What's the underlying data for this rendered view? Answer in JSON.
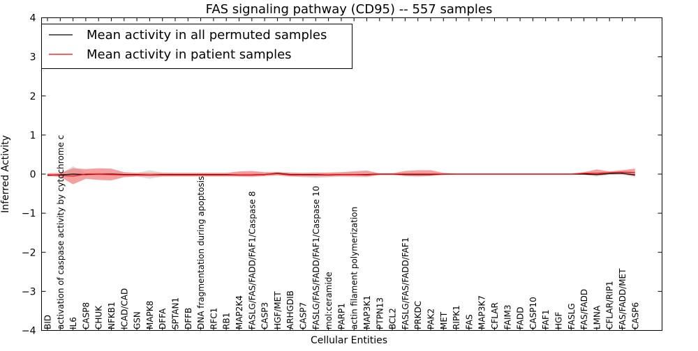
{
  "chart_data": {
    "type": "line",
    "title": "FAS signaling pathway (CD95) -- 557 samples",
    "xlabel": "Cellular Entities",
    "ylabel": "Inferred Activity",
    "ylim": [
      -4,
      4
    ],
    "yticks": [
      -4,
      -3,
      -2,
      -1,
      0,
      1,
      2,
      3,
      4
    ],
    "ytick_labels": [
      "−4",
      "−3",
      "−2",
      "−1",
      "0",
      "1",
      "2",
      "3",
      "4"
    ],
    "grid": false,
    "legend_position": "top-left",
    "categories": [
      "BID",
      "activation of caspase activity by cytochrome c",
      "IL6",
      "CASP8",
      "CHUK",
      "NFKB1",
      "ICAD/CAD",
      "GSN",
      "MAPK8",
      "DFFA",
      "SPTAN1",
      "DFFB",
      "DNA fragmentation during apoptosis",
      "RFC1",
      "RB1",
      "MAP2K4",
      "FASLG/FAS/FADD/FAF1/Caspase 8",
      "CASP3",
      "HGF/MET",
      "ARHGDIB",
      "CASP7",
      "FASLG/FAS/FADD/FAF1/Caspase 10",
      "mol:ceramide",
      "PARP1",
      "actin filament polymerization",
      "MAP3K1",
      "PTPN13",
      "BCL2",
      "FASLG/FAS/FADD/FAF1",
      "PRKDC",
      "PAK2",
      "MET",
      "RIPK1",
      "FAS",
      "MAP3K7",
      "CFLAR",
      "FAIM3",
      "FADD",
      "CASP10",
      "FAF1",
      "HGF",
      "FASLG",
      "FAS/FADD",
      "LMNA",
      "CFLAR/RIP1",
      "FAS/FADD/MET",
      "CASP6"
    ],
    "series": [
      {
        "name": "Mean activity in all permuted samples",
        "color": "#000000",
        "band_color": "#c8c8c8",
        "values": [
          -0.03,
          -0.02,
          0.0,
          -0.01,
          0.0,
          0.0,
          -0.01,
          -0.01,
          -0.02,
          -0.01,
          -0.01,
          -0.01,
          -0.01,
          -0.01,
          -0.01,
          -0.02,
          -0.02,
          -0.01,
          0.02,
          -0.01,
          -0.01,
          -0.01,
          -0.02,
          -0.01,
          -0.01,
          -0.01,
          0.0,
          0.0,
          -0.01,
          -0.01,
          -0.01,
          0.0,
          0.0,
          0.0,
          0.0,
          0.0,
          0.0,
          0.0,
          0.0,
          0.0,
          0.0,
          0.0,
          0.0,
          -0.01,
          0.01,
          0.02,
          -0.02
        ],
        "lower": [
          -0.06,
          -0.04,
          -0.07,
          -0.05,
          -0.04,
          -0.05,
          -0.05,
          -0.06,
          -0.12,
          -0.06,
          -0.05,
          -0.05,
          -0.05,
          -0.05,
          -0.05,
          -0.07,
          -0.08,
          -0.05,
          -0.02,
          -0.06,
          -0.08,
          -0.1,
          -0.08,
          -0.07,
          -0.08,
          -0.08,
          -0.03,
          -0.02,
          -0.03,
          -0.04,
          -0.04,
          -0.02,
          -0.01,
          -0.01,
          -0.01,
          -0.01,
          -0.01,
          -0.01,
          -0.01,
          -0.01,
          -0.01,
          -0.01,
          -0.02,
          -0.06,
          -0.02,
          -0.02,
          -0.06
        ],
        "upper": [
          0.0,
          0.0,
          0.2,
          0.03,
          0.04,
          0.04,
          0.03,
          0.03,
          0.1,
          0.04,
          0.03,
          0.03,
          0.03,
          0.03,
          0.03,
          0.03,
          0.04,
          0.03,
          0.06,
          0.03,
          0.03,
          0.05,
          0.03,
          0.03,
          0.04,
          0.04,
          0.02,
          0.02,
          0.02,
          0.03,
          0.02,
          0.01,
          0.01,
          0.01,
          0.01,
          0.01,
          0.01,
          0.01,
          0.01,
          0.01,
          0.01,
          0.01,
          0.02,
          0.03,
          0.04,
          0.06,
          0.02
        ]
      },
      {
        "name": "Mean activity in patient samples",
        "color": "#ff0000",
        "band_color": "#f08080",
        "values": [
          -0.02,
          -0.03,
          -0.05,
          0.0,
          0.0,
          -0.01,
          -0.02,
          -0.02,
          -0.02,
          -0.02,
          -0.02,
          -0.02,
          -0.02,
          -0.02,
          -0.02,
          -0.02,
          -0.02,
          -0.01,
          0.01,
          -0.02,
          -0.02,
          -0.02,
          -0.02,
          -0.01,
          -0.01,
          -0.02,
          0.0,
          0.0,
          0.0,
          0.0,
          0.0,
          0.0,
          0.0,
          0.0,
          0.0,
          0.0,
          0.0,
          0.0,
          0.0,
          0.0,
          0.0,
          0.0,
          0.02,
          0.02,
          0.04,
          0.05,
          0.04
        ],
        "lower": [
          -0.05,
          -0.07,
          -0.26,
          -0.12,
          -0.15,
          -0.16,
          -0.08,
          -0.06,
          -0.06,
          -0.06,
          -0.06,
          -0.06,
          -0.06,
          -0.06,
          -0.06,
          -0.06,
          -0.06,
          -0.05,
          -0.03,
          -0.06,
          -0.06,
          -0.06,
          -0.06,
          -0.05,
          -0.05,
          -0.06,
          -0.02,
          -0.02,
          -0.05,
          -0.06,
          -0.05,
          -0.02,
          -0.01,
          -0.01,
          -0.01,
          -0.01,
          -0.01,
          -0.01,
          -0.01,
          -0.01,
          -0.01,
          -0.01,
          -0.01,
          -0.04,
          0.0,
          0.0,
          -0.06
        ],
        "upper": [
          0.02,
          0.03,
          0.15,
          0.13,
          0.15,
          0.14,
          0.05,
          0.03,
          0.03,
          0.03,
          0.03,
          0.03,
          0.03,
          0.03,
          0.03,
          0.07,
          0.08,
          0.05,
          0.05,
          0.04,
          0.03,
          0.03,
          0.04,
          0.05,
          0.07,
          0.09,
          0.02,
          0.02,
          0.08,
          0.1,
          0.1,
          0.03,
          0.01,
          0.01,
          0.01,
          0.01,
          0.01,
          0.01,
          0.01,
          0.01,
          0.01,
          0.01,
          0.05,
          0.12,
          0.07,
          0.1,
          0.14
        ]
      }
    ]
  }
}
